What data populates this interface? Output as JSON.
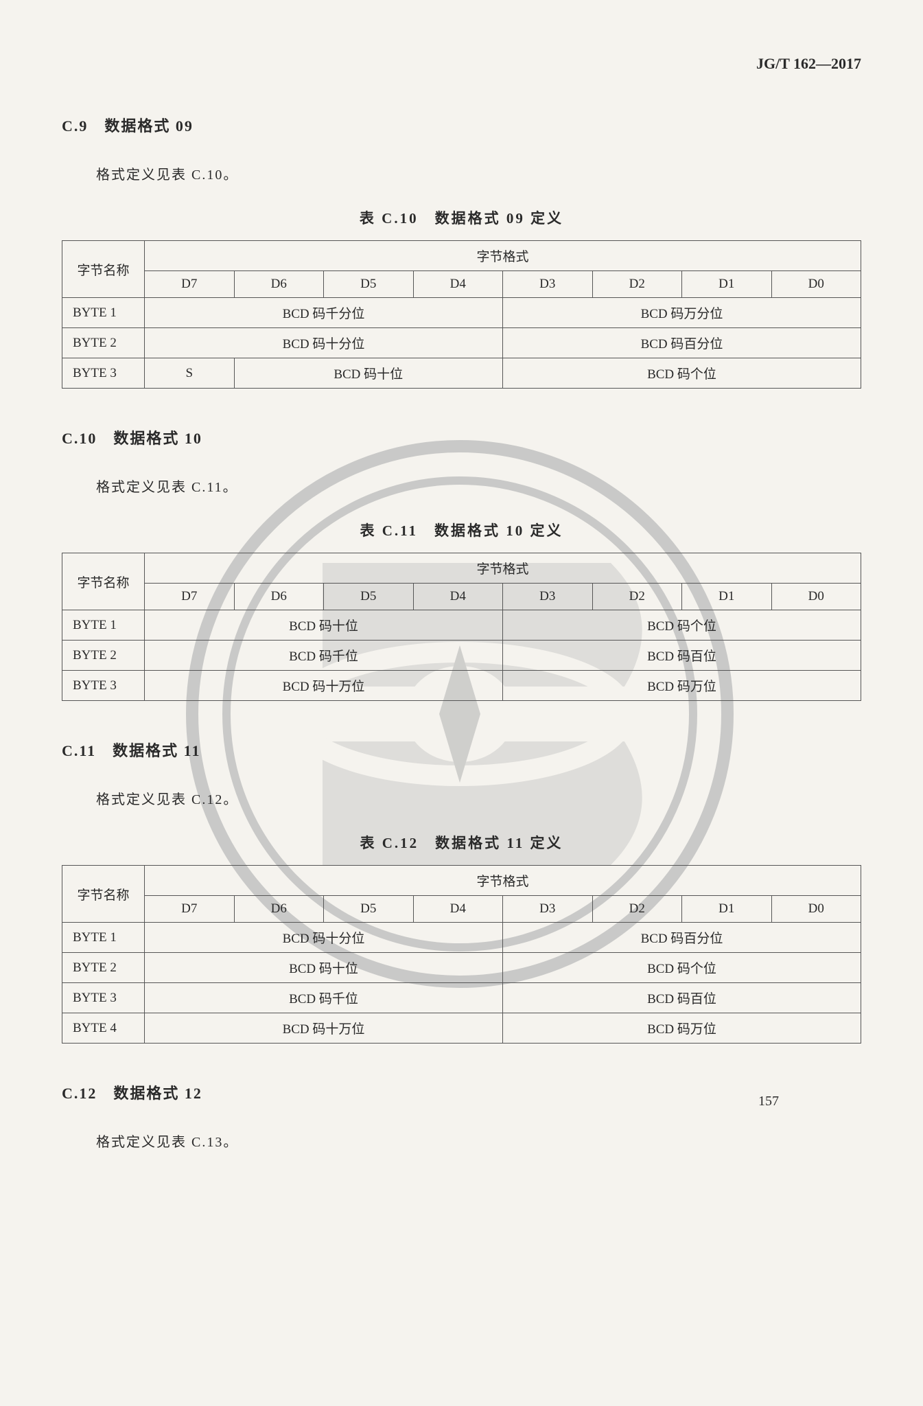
{
  "doc_code": "JG/T 162—2017",
  "page_number": "157",
  "sections": [
    {
      "heading": "C.9　数据格式 09",
      "text": "格式定义见表 C.10。",
      "caption": "表 C.10　数据格式 09 定义",
      "table": {
        "row_header": "字节名称",
        "group_header": "字节格式",
        "bits": [
          "D7",
          "D6",
          "D5",
          "D4",
          "D3",
          "D2",
          "D1",
          "D0"
        ],
        "rows": [
          {
            "name": "BYTE 1",
            "cells": [
              {
                "span": 4,
                "text": "BCD 码千分位"
              },
              {
                "span": 4,
                "text": "BCD 码万分位"
              }
            ]
          },
          {
            "name": "BYTE 2",
            "cells": [
              {
                "span": 4,
                "text": "BCD 码十分位"
              },
              {
                "span": 4,
                "text": "BCD 码百分位"
              }
            ]
          },
          {
            "name": "BYTE 3",
            "cells": [
              {
                "span": 1,
                "text": "S"
              },
              {
                "span": 3,
                "text": "BCD 码十位"
              },
              {
                "span": 4,
                "text": "BCD 码个位"
              }
            ]
          }
        ]
      }
    },
    {
      "heading": "C.10　数据格式 10",
      "text": "格式定义见表 C.11。",
      "caption": "表 C.11　数据格式 10 定义",
      "table": {
        "row_header": "字节名称",
        "group_header": "字节格式",
        "bits": [
          "D7",
          "D6",
          "D5",
          "D4",
          "D3",
          "D2",
          "D1",
          "D0"
        ],
        "rows": [
          {
            "name": "BYTE 1",
            "cells": [
              {
                "span": 4,
                "text": "BCD 码十位"
              },
              {
                "span": 4,
                "text": "BCD 码个位"
              }
            ]
          },
          {
            "name": "BYTE 2",
            "cells": [
              {
                "span": 4,
                "text": "BCD 码千位"
              },
              {
                "span": 4,
                "text": "BCD 码百位"
              }
            ]
          },
          {
            "name": "BYTE 3",
            "cells": [
              {
                "span": 4,
                "text": "BCD 码十万位"
              },
              {
                "span": 4,
                "text": "BCD 码万位"
              }
            ]
          }
        ]
      }
    },
    {
      "heading": "C.11　数据格式 11",
      "text": "格式定义见表 C.12。",
      "caption": "表 C.12　数据格式 11 定义",
      "table": {
        "row_header": "字节名称",
        "group_header": "字节格式",
        "bits": [
          "D7",
          "D6",
          "D5",
          "D4",
          "D3",
          "D2",
          "D1",
          "D0"
        ],
        "rows": [
          {
            "name": "BYTE 1",
            "cells": [
              {
                "span": 4,
                "text": "BCD 码十分位"
              },
              {
                "span": 4,
                "text": "BCD 码百分位"
              }
            ]
          },
          {
            "name": "BYTE 2",
            "cells": [
              {
                "span": 4,
                "text": "BCD 码十位"
              },
              {
                "span": 4,
                "text": "BCD 码个位"
              }
            ]
          },
          {
            "name": "BYTE 3",
            "cells": [
              {
                "span": 4,
                "text": "BCD 码千位"
              },
              {
                "span": 4,
                "text": "BCD 码百位"
              }
            ]
          },
          {
            "name": "BYTE 4",
            "cells": [
              {
                "span": 4,
                "text": "BCD 码十万位"
              },
              {
                "span": 4,
                "text": "BCD 码万位"
              }
            ]
          }
        ]
      }
    },
    {
      "heading": "C.12　数据格式 12",
      "text": "格式定义见表 C.13。",
      "caption": "",
      "table": null
    }
  ],
  "watermark": {
    "outer_stroke": "#7a7e82",
    "inner_stroke": "#7a7e82",
    "fill": "#8a8d90"
  }
}
